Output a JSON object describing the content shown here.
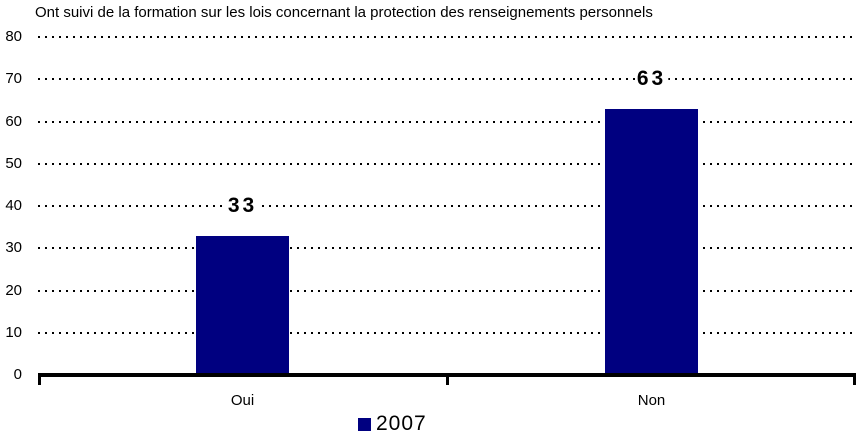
{
  "chart_data": {
    "type": "bar",
    "title": "Ont suivi de la formation sur les lois concernant la protection des renseignements personnels",
    "categories": [
      "Oui",
      "Non"
    ],
    "series": [
      {
        "name": "2007",
        "values": [
          33,
          63
        ]
      }
    ],
    "data_labels": [
      "33",
      "63"
    ],
    "xlabel": "",
    "ylabel": "",
    "ylim": [
      0,
      80
    ],
    "yticks": [
      0,
      10,
      20,
      30,
      40,
      50,
      60,
      70,
      80
    ],
    "grid": "horizontal dotted gridlines",
    "legend_position": "bottom center",
    "legend_entries": [
      "2007"
    ],
    "colors": {
      "bar": "#000080",
      "legend_swatch": "#000080",
      "gridline": "#000000",
      "axis": "#000000",
      "text": "#000000",
      "background": "#ffffff"
    }
  }
}
